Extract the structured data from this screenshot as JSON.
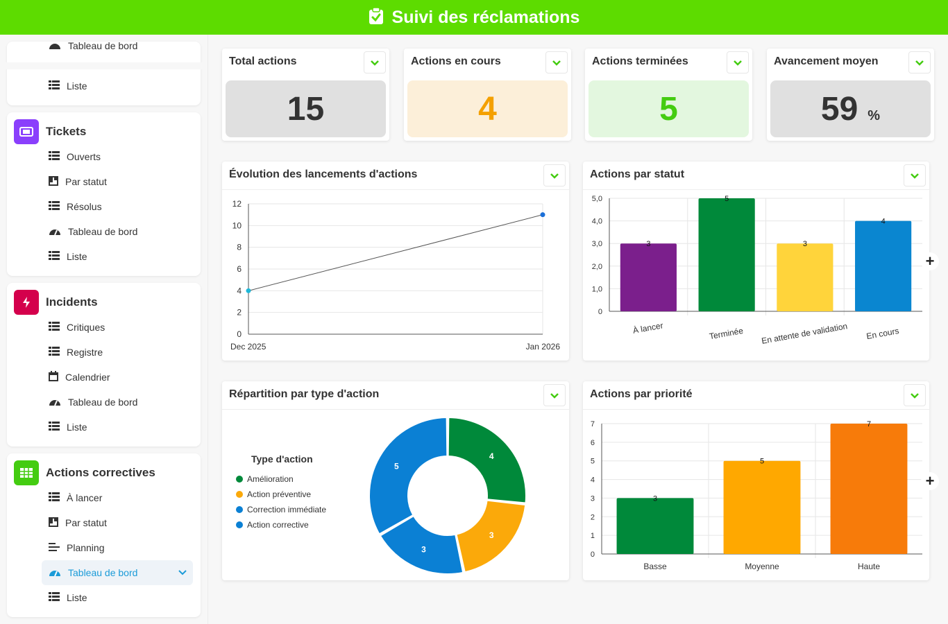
{
  "header": {
    "title": "Suivi des réclamations",
    "icon": "clipboard-check-icon"
  },
  "sidebar": {
    "tools": [
      "layout-icon",
      "plus-icon",
      "recycle-icon"
    ],
    "partial_group": {
      "items": [
        {
          "label": "Tableau de bord",
          "icon": "gauge-icon"
        },
        {
          "label": "Liste",
          "icon": "list-icon"
        }
      ]
    },
    "groups": [
      {
        "title": "Tickets",
        "icon": "ticket-icon",
        "color": "#8a3ffc",
        "items": [
          {
            "label": "Ouverts",
            "icon": "list-icon"
          },
          {
            "label": "Par statut",
            "icon": "board-icon"
          },
          {
            "label": "Résolus",
            "icon": "list-icon"
          },
          {
            "label": "Tableau de bord",
            "icon": "gauge-icon"
          },
          {
            "label": "Liste",
            "icon": "list-icon"
          }
        ]
      },
      {
        "title": "Incidents",
        "icon": "bolt-icon",
        "color": "#d4004c",
        "items": [
          {
            "label": "Critiques",
            "icon": "list-icon"
          },
          {
            "label": "Registre",
            "icon": "list-icon"
          },
          {
            "label": "Calendrier",
            "icon": "calendar-icon"
          },
          {
            "label": "Tableau de bord",
            "icon": "gauge-icon"
          },
          {
            "label": "Liste",
            "icon": "list-icon"
          }
        ]
      },
      {
        "title": "Actions correctives",
        "icon": "grid-icon",
        "color": "#44cc11",
        "items": [
          {
            "label": "À lancer",
            "icon": "list-icon"
          },
          {
            "label": "Par statut",
            "icon": "board-icon"
          },
          {
            "label": "Planning",
            "icon": "gantt-icon"
          },
          {
            "label": "Tableau de bord",
            "icon": "gauge-icon",
            "active": true
          },
          {
            "label": "Liste",
            "icon": "list-icon"
          }
        ]
      }
    ]
  },
  "kpis": [
    {
      "title": "Total actions",
      "value": "15",
      "unit": "",
      "bg": "#e0e0e0",
      "fg": "#333333"
    },
    {
      "title": "Actions en cours",
      "value": "4",
      "unit": "",
      "bg": "#fcefd9",
      "fg": "#f4a000"
    },
    {
      "title": "Actions terminées",
      "value": "5",
      "unit": "",
      "bg": "#e3f7df",
      "fg": "#44cc11"
    },
    {
      "title": "Avancement moyen",
      "value": "59",
      "unit": "%",
      "bg": "#e0e0e0",
      "fg": "#333333"
    }
  ],
  "panels": {
    "evolution": {
      "title": "Évolution des lancements d'actions"
    },
    "statut": {
      "title": "Actions par statut"
    },
    "type": {
      "title": "Répartition par type d'action"
    },
    "priorite": {
      "title": "Actions par priorité"
    }
  },
  "chart_data": [
    {
      "type": "line",
      "x": [
        "Dec 2025",
        "Jan 2026"
      ],
      "series": [
        {
          "values": [
            4,
            11
          ]
        }
      ],
      "ylim": [
        0,
        12
      ],
      "yticks": [
        "0",
        "2",
        "4",
        "6",
        "8",
        "10",
        "12"
      ],
      "grid": true,
      "colors": [
        "#1fb8d8",
        "#1b6fd8"
      ]
    },
    {
      "type": "bar",
      "categories": [
        "À lancer",
        "Terminée",
        "En attente de validation",
        "En cours"
      ],
      "values": [
        3,
        5,
        3,
        4
      ],
      "ylim": [
        0,
        5
      ],
      "yticks": [
        "0",
        "1,0",
        "2,0",
        "3,0",
        "4,0",
        "5,0"
      ],
      "colors": [
        "#7b1f8c",
        "#00893a",
        "#ffd43b",
        "#0a86d0"
      ]
    },
    {
      "type": "pie",
      "legend_title": "Type d'action",
      "legend_position": "left",
      "slices": [
        {
          "name": "Amélioration",
          "value": 4,
          "color": "#00893a"
        },
        {
          "name": "Action préventive",
          "value": 3,
          "color": "#fba90a"
        },
        {
          "name": "Correction immédiate",
          "value": 3,
          "color": "#0b80d4"
        },
        {
          "name": "Action corrective",
          "value": 5,
          "color": "#0b80d4"
        }
      ]
    },
    {
      "type": "bar",
      "categories": [
        "Basse",
        "Moyenne",
        "Haute"
      ],
      "values": [
        3,
        5,
        7
      ],
      "ylim": [
        0,
        7
      ],
      "yticks": [
        "0",
        "1",
        "2",
        "3",
        "4",
        "5",
        "6",
        "7"
      ],
      "colors": [
        "#00893a",
        "#ffa800",
        "#f77b0a"
      ]
    }
  ]
}
